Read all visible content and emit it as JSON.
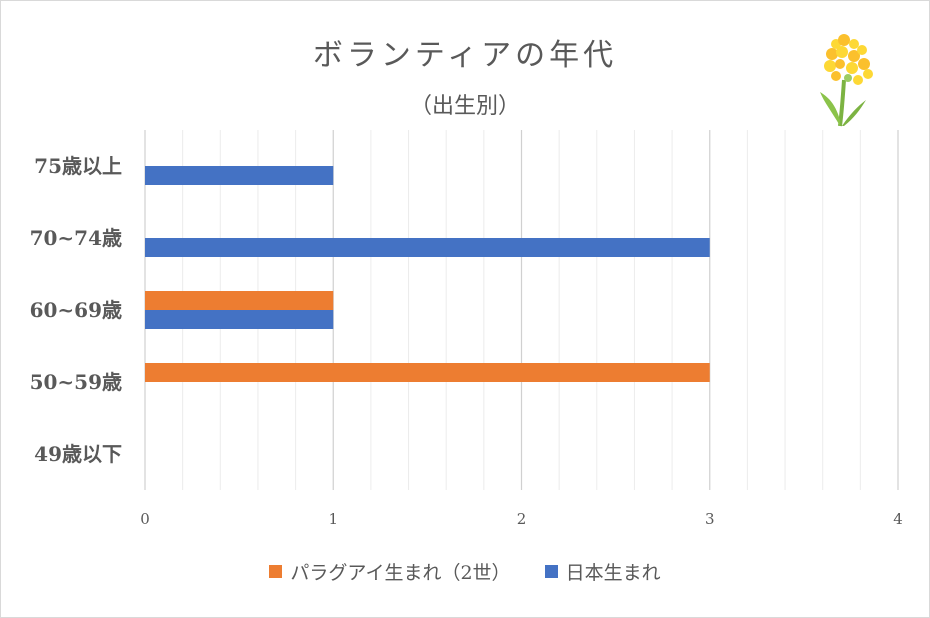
{
  "chart_data": {
    "type": "bar",
    "orientation": "horizontal",
    "title": "ボランティアの年代",
    "subtitle": "（出生別）",
    "categories": [
      "75歳以上",
      "70~74歳",
      "60~69歳",
      "50~59歳",
      "49歳以下"
    ],
    "series": [
      {
        "name": "パラグアイ生まれ（2世）",
        "color": "#ED7D31",
        "values": [
          0,
          0,
          1,
          3,
          0
        ]
      },
      {
        "name": "日本生まれ",
        "color": "#4472C4",
        "values": [
          1,
          3,
          1,
          0,
          0
        ]
      }
    ],
    "xlim": [
      0,
      4
    ],
    "xticks": [
      "0",
      "1",
      "2",
      "3",
      "4"
    ],
    "grid": true,
    "legend_position": "bottom",
    "decoration_icon": "rapeseed-flower-icon"
  }
}
